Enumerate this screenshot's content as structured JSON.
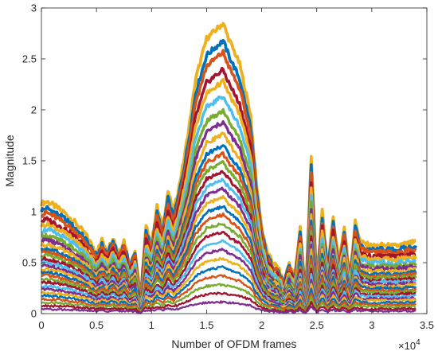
{
  "chart_data": {
    "type": "area",
    "title": "",
    "xlabel": "Number of OFDM frames",
    "ylabel": "Magnitude",
    "x_exponent_base": "×10",
    "x_exponent_power": "4",
    "xlim": [
      0,
      3.5
    ],
    "ylim": [
      0,
      3
    ],
    "xticks": [
      {
        "value": 0,
        "label": "0"
      },
      {
        "value": 0.5,
        "label": "0.5"
      },
      {
        "value": 1,
        "label": "1"
      },
      {
        "value": 1.5,
        "label": "1.5"
      },
      {
        "value": 2,
        "label": "2"
      },
      {
        "value": 2.5,
        "label": "2.5"
      },
      {
        "value": 3,
        "label": "3"
      },
      {
        "value": 3.5,
        "label": "3.5"
      }
    ],
    "yticks": [
      {
        "value": 0,
        "label": "0"
      },
      {
        "value": 0.5,
        "label": "0.5"
      },
      {
        "value": 1,
        "label": "1"
      },
      {
        "value": 1.5,
        "label": "1.5"
      },
      {
        "value": 2,
        "label": "2"
      },
      {
        "value": 2.5,
        "label": "2.5"
      },
      {
        "value": 3,
        "label": "3"
      }
    ],
    "grid": false,
    "legend": "none",
    "x_end": 3.4,
    "envelope": {
      "x": [
        0,
        0.05,
        0.1,
        0.2,
        0.3,
        0.4,
        0.5,
        0.55,
        0.6,
        0.65,
        0.7,
        0.75,
        0.8,
        0.85,
        0.9,
        0.95,
        1.0,
        1.05,
        1.1,
        1.15,
        1.2,
        1.25,
        1.3,
        1.35,
        1.4,
        1.5,
        1.6,
        1.65,
        1.7,
        1.8,
        1.9,
        1.95,
        2.0,
        2.05,
        2.1,
        2.15,
        2.2,
        2.25,
        2.3,
        2.35,
        2.4,
        2.45,
        2.5,
        2.55,
        2.6,
        2.65,
        2.7,
        2.75,
        2.8,
        2.85,
        2.9,
        3.0,
        3.1,
        3.2,
        3.3,
        3.4
      ],
      "y": [
        1.08,
        1.1,
        1.07,
        1.0,
        0.9,
        0.78,
        0.6,
        0.72,
        0.62,
        0.75,
        0.6,
        0.72,
        0.5,
        0.62,
        0.15,
        0.85,
        0.7,
        1.05,
        0.85,
        1.2,
        1.0,
        1.25,
        1.55,
        1.9,
        2.3,
        2.7,
        2.8,
        2.85,
        2.7,
        2.45,
        1.95,
        1.3,
        0.85,
        0.6,
        0.5,
        0.45,
        0.3,
        0.5,
        0.35,
        0.85,
        0.15,
        1.55,
        0.3,
        1.0,
        0.45,
        0.95,
        0.5,
        0.85,
        0.35,
        0.9,
        0.7,
        0.66,
        0.67,
        0.66,
        0.68,
        0.7
      ]
    },
    "series_scales": [
      1.0,
      0.94,
      0.9,
      0.84,
      0.8,
      0.75,
      0.7,
      0.66,
      0.62,
      0.58,
      0.55,
      0.52,
      0.49,
      0.46,
      0.43,
      0.4,
      0.37,
      0.34,
      0.31,
      0.28,
      0.25,
      0.22,
      0.19,
      0.16,
      0.13,
      0.1,
      0.07,
      0.04
    ],
    "series_colors": [
      "#EDB120",
      "#0072BD",
      "#D95319",
      "#A2142F",
      "#EDB120",
      "#4DBEEE",
      "#77AC30",
      "#7E2F8E",
      "#EDB120",
      "#0072BD",
      "#D95319",
      "#77AC30",
      "#A2142F",
      "#4DBEEE",
      "#7E2F8E",
      "#EDB120",
      "#0072BD",
      "#D95319",
      "#77AC30",
      "#A2142F",
      "#4DBEEE",
      "#7E2F8E",
      "#EDB120",
      "#0072BD",
      "#D95319",
      "#77AC30",
      "#A2142F",
      "#7E2F8E"
    ]
  }
}
